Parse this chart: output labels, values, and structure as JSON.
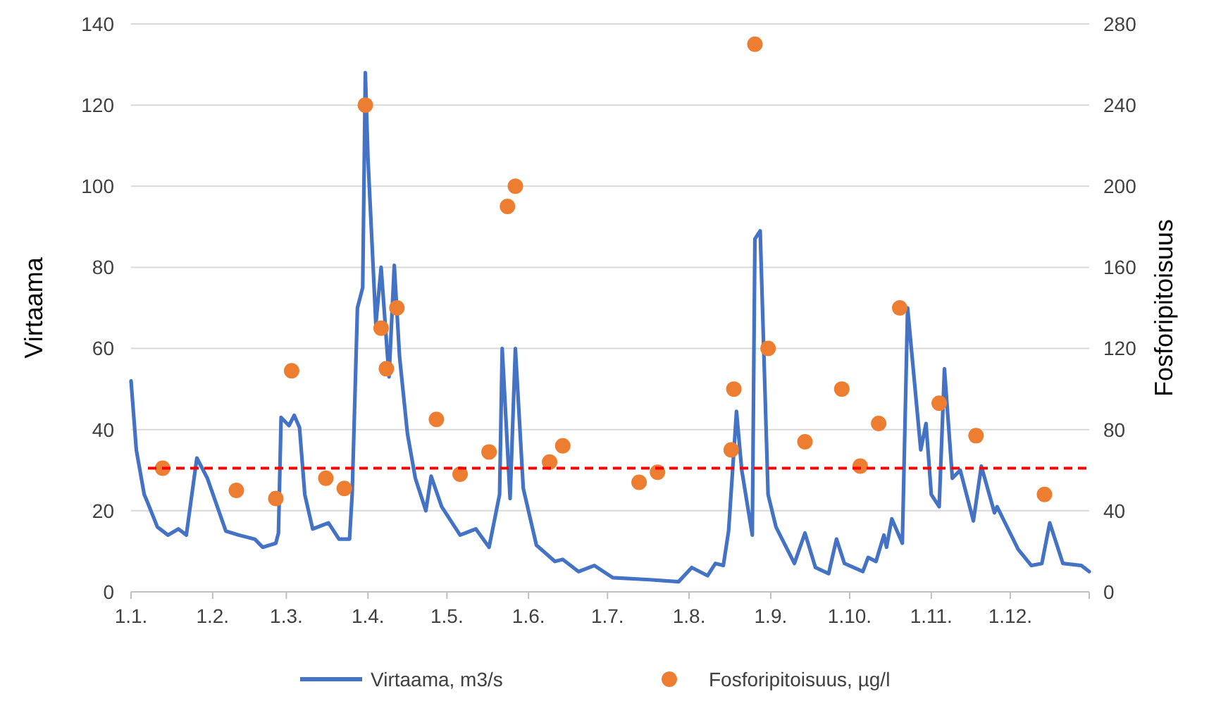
{
  "chart_data": {
    "type": "line",
    "ylabel": "Virtaama",
    "y2label": "Fosforipitoisuus",
    "xlim": [
      "--01-01",
      "--12-31"
    ],
    "xticks": [
      {
        "value": "--01-01",
        "label": "1.1."
      },
      {
        "value": "--02-01",
        "label": "1.2."
      },
      {
        "value": "--03-01",
        "label": "1.3."
      },
      {
        "value": "--04-01",
        "label": "1.4."
      },
      {
        "value": "--05-01",
        "label": "1.5."
      },
      {
        "value": "--06-01",
        "label": "1.6."
      },
      {
        "value": "--07-01",
        "label": "1.7."
      },
      {
        "value": "--08-01",
        "label": "1.8."
      },
      {
        "value": "--09-01",
        "label": "1.9."
      },
      {
        "value": "--10-01",
        "label": "1.10."
      },
      {
        "value": "--11-01",
        "label": "1.11."
      },
      {
        "value": "--12-01",
        "label": "1.12."
      }
    ],
    "ylim": [
      0,
      140
    ],
    "yticks": [
      0,
      20,
      40,
      60,
      80,
      100,
      120,
      140
    ],
    "y2lim": [
      0,
      280
    ],
    "y2ticks": [
      0,
      40,
      80,
      120,
      160,
      200,
      240,
      280
    ],
    "grid": "y",
    "legend": "bottom",
    "ref_lines": [
      {
        "axis": "y2",
        "value": 61,
        "color": "#ff0000",
        "line_style": "dashed"
      }
    ],
    "series": [
      {
        "name": "Virtaama, m3/s",
        "color": "#4472c4",
        "marker": "none",
        "line_style": "solid",
        "x": [
          "--01-01",
          "--01-03",
          "--01-06",
          "--01-07",
          "--01-11",
          "--01-15",
          "--01-19",
          "--01-22",
          "--01-26",
          "--01-30",
          "--02-06",
          "--02-11",
          "--02-17",
          "--02-20",
          "--02-25",
          "--02-26",
          "--02-27",
          "--03-02",
          "--03-04",
          "--03-06",
          "--03-08",
          "--03-11",
          "--03-15",
          "--03-17",
          "--03-21",
          "--03-25",
          "--03-26",
          "--03-28",
          "--03-30",
          "--03-31",
          "--04-01",
          "--04-04",
          "--04-06",
          "--04-09",
          "--04-11",
          "--04-13",
          "--04-16",
          "--04-19",
          "--04-23",
          "--04-25",
          "--04-29",
          "--05-06",
          "--05-08",
          "--05-12",
          "--05-17",
          "--05-21",
          "--05-22",
          "--05-25",
          "--05-27",
          "--05-30",
          "--06-04",
          "--06-11",
          "--06-14",
          "--06-20",
          "--06-26",
          "--07-03",
          "--07-17",
          "--07-28",
          "--08-02",
          "--08-08",
          "--08-11",
          "--08-14",
          "--08-16",
          "--08-19",
          "--08-21",
          "--08-25",
          "--08-26",
          "--08-28",
          "--08-31",
          "--09-03",
          "--09-10",
          "--09-14",
          "--09-18",
          "--09-23",
          "--09-26",
          "--09-29",
          "--10-06",
          "--10-08",
          "--10-11",
          "--10-14",
          "--10-15",
          "--10-17",
          "--10-21",
          "--10-23",
          "--10-28",
          "--10-30",
          "--11-01",
          "--11-04",
          "--11-06",
          "--11-09",
          "--11-12",
          "--11-17",
          "--11-20",
          "--11-25",
          "--11-26",
          "--12-04",
          "--12-09",
          "--12-13",
          "--12-16",
          "--12-21",
          "--12-28",
          "--12-31"
        ],
        "values": [
          52,
          35,
          24,
          22.5,
          16,
          14,
          15.5,
          14,
          33,
          28,
          15,
          14,
          13,
          11,
          12,
          14.5,
          43,
          41,
          43.5,
          40.5,
          24,
          15.5,
          16.5,
          17,
          13,
          13,
          24,
          70,
          75,
          128,
          107,
          66,
          80,
          53,
          80.5,
          58,
          39,
          28,
          20,
          28.5,
          21,
          14,
          14.5,
          15.5,
          11,
          24,
          60,
          23,
          60,
          25.5,
          11.5,
          7.5,
          8,
          5,
          6.5,
          3.5,
          3,
          2.5,
          6,
          4,
          7,
          6.5,
          15,
          44.5,
          30,
          14,
          87,
          89,
          24,
          16,
          7,
          14.5,
          6,
          4.5,
          13,
          7,
          5,
          8.5,
          7.5,
          14,
          11,
          18,
          12,
          70,
          35,
          41.5,
          24,
          21,
          55,
          28,
          30,
          17.5,
          31,
          19.5,
          21,
          10.5,
          6.5,
          7,
          17,
          7,
          6.5,
          5
        ]
      },
      {
        "name": "Fosforipitoisuus, µg/l",
        "type": "scatter",
        "axis": "y2",
        "color": "#ed7d31",
        "marker": "circle",
        "x": [
          "--01-13",
          "--02-10",
          "--02-25",
          "--03-03",
          "--03-16",
          "--03-23",
          "--03-31",
          "--04-06",
          "--04-08",
          "--04-12",
          "--04-27",
          "--05-06",
          "--05-17",
          "--05-24",
          "--05-27",
          "--06-09",
          "--06-14",
          "--07-13",
          "--07-20",
          "--08-17",
          "--08-18",
          "--08-26",
          "--08-31",
          "--09-14",
          "--09-28",
          "--10-05",
          "--10-12",
          "--10-20",
          "--11-04",
          "--11-18",
          "--12-14"
        ],
        "values": [
          61,
          50,
          46,
          109,
          56,
          51,
          240,
          130,
          110,
          140,
          85,
          58,
          69,
          190,
          200,
          64,
          72,
          54,
          59,
          70,
          100,
          270,
          120,
          74,
          100,
          62,
          83,
          140,
          93,
          77,
          48
        ]
      }
    ]
  }
}
